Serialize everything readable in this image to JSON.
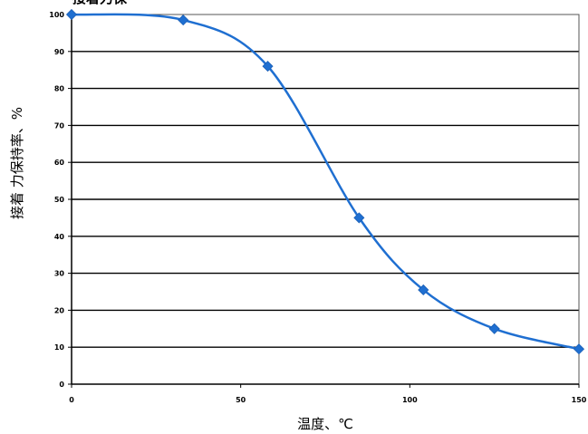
{
  "chart_data": {
    "type": "line",
    "title": "",
    "xlabel": "温度、℃",
    "ylabel": "接着 力保持率、%",
    "xlim": [
      0,
      150
    ],
    "ylim": [
      0,
      100
    ],
    "x_ticks": [
      0,
      50,
      100,
      150
    ],
    "y_ticks": [
      0,
      10,
      20,
      30,
      40,
      50,
      60,
      70,
      80,
      90,
      100
    ],
    "grid": "horizontal",
    "legend": "none",
    "smooth": true,
    "series": [
      {
        "color": "#1f6fd1",
        "marker": "diamond",
        "points": [
          {
            "x": 0,
            "y": 100
          },
          {
            "x": 33,
            "y": 98.5
          },
          {
            "x": 58,
            "y": 86
          },
          {
            "x": 85,
            "y": 45
          },
          {
            "x": 104,
            "y": 25.5
          },
          {
            "x": 125,
            "y": 15
          },
          {
            "x": 150,
            "y": 9.5
          }
        ]
      }
    ],
    "colors": {
      "line": "#1f6fd1",
      "grid": "#000000",
      "frame": "#000000"
    }
  }
}
